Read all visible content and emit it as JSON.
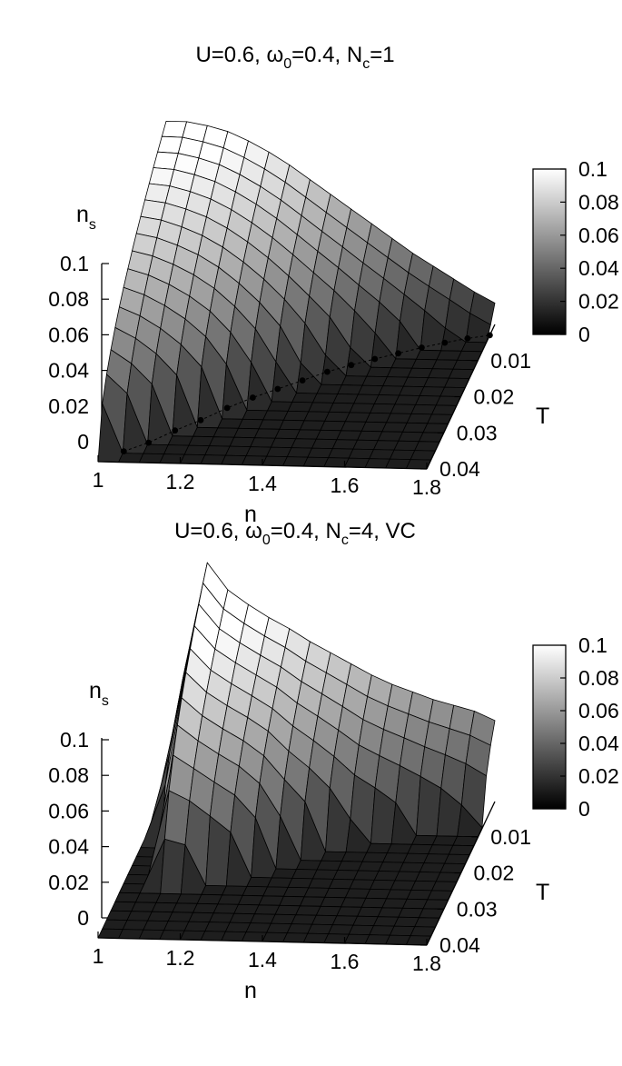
{
  "chart_data": [
    {
      "type": "surface",
      "title": {
        "base": "U=0.6, ",
        "omega": "ω",
        "omega_sub": "0",
        "mid": "=0.4, N",
        "n_sub": "c",
        "tail": "=1"
      },
      "xlabel": "n",
      "ylabel": "T",
      "zlabel": {
        "main": "n",
        "sub": "s"
      },
      "x_ticks": [
        "1",
        "1.2",
        "1.4",
        "1.6",
        "1.8"
      ],
      "y_ticks": [
        "0.01",
        "0.02",
        "0.03",
        "0.04"
      ],
      "z_ticks": [
        "0",
        "0.02",
        "0.04",
        "0.06",
        "0.08",
        "0.1"
      ],
      "colorbar_ticks": [
        "0",
        "0.02",
        "0.04",
        "0.06",
        "0.08",
        "0.1"
      ],
      "colorbar_range": [
        0,
        0.1
      ],
      "colormap": [
        "#000000",
        "#ffffff"
      ],
      "xlim": [
        1.0,
        1.8
      ],
      "ylim": [
        0.0,
        0.04
      ],
      "zlim": [
        0,
        0.1
      ],
      "n_values": [
        1.0,
        1.05,
        1.1,
        1.15,
        1.2,
        1.25,
        1.3,
        1.35,
        1.4,
        1.45,
        1.5,
        1.55,
        1.6,
        1.65,
        1.7,
        1.75,
        1.8
      ],
      "T_values": [
        0.04,
        0.0375,
        0.035,
        0.0325,
        0.03,
        0.0275,
        0.025,
        0.0225,
        0.02,
        0.0175,
        0.015,
        0.0125,
        0.01,
        0.0075,
        0.005,
        0.0025,
        0.0
      ],
      "ns_max": [
        0.11,
        0.11,
        0.108,
        0.105,
        0.1,
        0.094,
        0.087,
        0.079,
        0.071,
        0.063,
        0.055,
        0.047,
        0.039,
        0.032,
        0.025,
        0.018,
        0.012
      ],
      "Tc": [
        0.04,
        0.0375,
        0.035,
        0.0325,
        0.03,
        0.027,
        0.024,
        0.021,
        0.018,
        0.0155,
        0.013,
        0.011,
        0.009,
        0.007,
        0.0055,
        0.004,
        0.003
      ],
      "boundary_points": [
        {
          "n": 1.05,
          "T": 0.037
        },
        {
          "n": 1.1,
          "T": 0.0345
        },
        {
          "n": 1.15,
          "T": 0.031
        },
        {
          "n": 1.2,
          "T": 0.028
        },
        {
          "n": 1.25,
          "T": 0.0245
        },
        {
          "n": 1.3,
          "T": 0.0215
        },
        {
          "n": 1.35,
          "T": 0.019
        },
        {
          "n": 1.4,
          "T": 0.0165
        },
        {
          "n": 1.45,
          "T": 0.014
        },
        {
          "n": 1.5,
          "T": 0.012
        },
        {
          "n": 1.55,
          "T": 0.0102
        },
        {
          "n": 1.6,
          "T": 0.0085
        },
        {
          "n": 1.65,
          "T": 0.0068
        },
        {
          "n": 1.7,
          "T": 0.0053
        },
        {
          "n": 1.75,
          "T": 0.004
        },
        {
          "n": 1.8,
          "T": 0.003
        }
      ]
    },
    {
      "type": "surface",
      "title": {
        "base": "U=0.6, ",
        "omega": "ω",
        "omega_sub": "0",
        "mid": "=0.4, N",
        "n_sub": "c",
        "tail": "=4, VC"
      },
      "xlabel": "n",
      "ylabel": "T",
      "zlabel": {
        "main": "n",
        "sub": "s"
      },
      "x_ticks": [
        "1",
        "1.2",
        "1.4",
        "1.6",
        "1.8"
      ],
      "y_ticks": [
        "0.01",
        "0.02",
        "0.03",
        "0.04"
      ],
      "z_ticks": [
        "0",
        "0.02",
        "0.04",
        "0.06",
        "0.08",
        "0.1"
      ],
      "colorbar_ticks": [
        "0",
        "0.02",
        "0.04",
        "0.06",
        "0.08",
        "0.1"
      ],
      "colorbar_range": [
        0,
        0.1
      ],
      "colormap": [
        "#000000",
        "#ffffff"
      ],
      "xlim": [
        1.0,
        1.8
      ],
      "ylim": [
        0.0,
        0.04
      ],
      "zlim": [
        0,
        0.1
      ],
      "n_values": [
        1.0,
        1.05,
        1.1,
        1.15,
        1.2,
        1.25,
        1.3,
        1.35,
        1.4,
        1.45,
        1.5,
        1.55,
        1.6,
        1.65,
        1.7,
        1.75,
        1.8
      ],
      "T_values": [
        0.04,
        0.0375,
        0.035,
        0.0325,
        0.03,
        0.0275,
        0.025,
        0.0225,
        0.02,
        0.0175,
        0.015,
        0.0125,
        0.01,
        0.0075,
        0.005,
        0.0025,
        0.0
      ],
      "ns_max": [
        0.0,
        0.075,
        0.13,
        0.115,
        0.107,
        0.1,
        0.094,
        0.087,
        0.081,
        0.075,
        0.069,
        0.064,
        0.06,
        0.056,
        0.053,
        0.05,
        0.045
      ],
      "Tc": [
        0.0,
        0.015,
        0.026,
        0.026,
        0.025,
        0.024,
        0.022,
        0.019,
        0.017,
        0.015,
        0.013,
        0.012,
        0.011,
        0.01,
        0.009,
        0.008,
        0.007
      ]
    }
  ]
}
